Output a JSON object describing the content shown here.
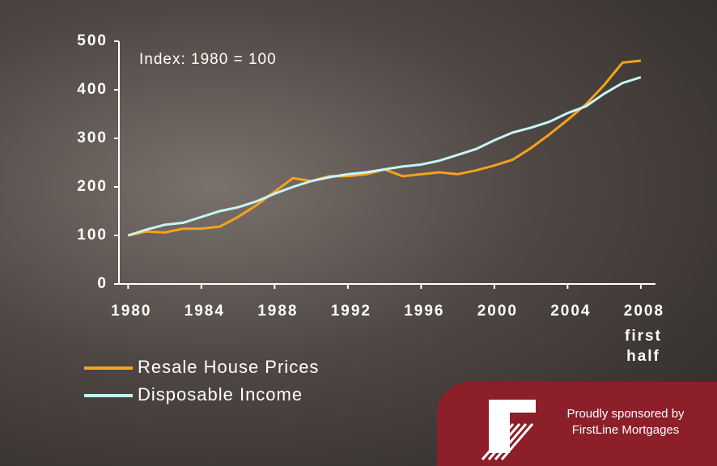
{
  "chart_data": {
    "type": "line",
    "annotation": "Index: 1980 = 100",
    "x": [
      1980,
      1981,
      1982,
      1983,
      1984,
      1985,
      1986,
      1987,
      1988,
      1989,
      1990,
      1991,
      1992,
      1993,
      1994,
      1995,
      1996,
      1997,
      1998,
      1999,
      2000,
      2001,
      2002,
      2003,
      2004,
      2005,
      2006,
      2007,
      2008
    ],
    "series": [
      {
        "name": "Resale House Prices",
        "color": "#f7a21b",
        "values": [
          100,
          108,
          106,
          114,
          114,
          118,
          138,
          162,
          190,
          218,
          212,
          222,
          222,
          226,
          236,
          222,
          226,
          230,
          226,
          234,
          244,
          256,
          280,
          308,
          338,
          370,
          410,
          456,
          460
        ]
      },
      {
        "name": "Disposable Income",
        "color": "#c8f4f4",
        "values": [
          100,
          112,
          122,
          126,
          138,
          150,
          158,
          170,
          186,
          200,
          212,
          220,
          226,
          230,
          236,
          242,
          246,
          254,
          266,
          278,
          296,
          312,
          322,
          334,
          352,
          366,
          392,
          414,
          426
        ]
      }
    ],
    "xlim": [
      1979.5,
      2008.8
    ],
    "xticks": [
      1980,
      1984,
      1988,
      1992,
      1996,
      2000,
      2004,
      2008
    ],
    "xtick_note": "first half",
    "ylim": [
      0,
      500
    ],
    "yticks": [
      0,
      100,
      200,
      300,
      400,
      500
    ],
    "legend": "bottom-left"
  },
  "sponsor": {
    "line1": "Proudly sponsored by",
    "line2": "FirstLine Mortgages"
  }
}
